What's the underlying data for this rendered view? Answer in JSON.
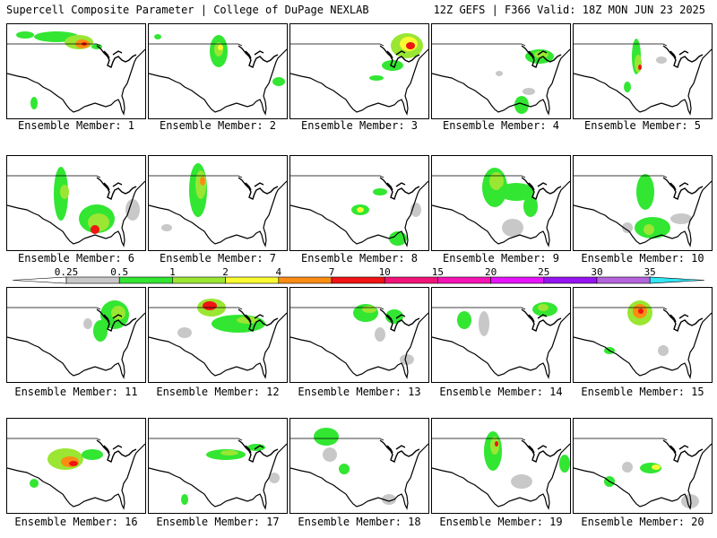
{
  "header": {
    "left": "Supercell Composite Parameter | College of DuPage NEXLAB",
    "right": "12Z GEFS | F366 Valid: 18Z MON JUN 23 2025"
  },
  "members": [
    {
      "label": "Ensemble Member: 1"
    },
    {
      "label": "Ensemble Member: 2"
    },
    {
      "label": "Ensemble Member: 3"
    },
    {
      "label": "Ensemble Member: 4"
    },
    {
      "label": "Ensemble Member: 5"
    },
    {
      "label": "Ensemble Member: 6"
    },
    {
      "label": "Ensemble Member: 7"
    },
    {
      "label": "Ensemble Member: 8"
    },
    {
      "label": "Ensemble Member: 9"
    },
    {
      "label": "Ensemble Member: 10"
    },
    {
      "label": "Ensemble Member: 11"
    },
    {
      "label": "Ensemble Member: 12"
    },
    {
      "label": "Ensemble Member: 13"
    },
    {
      "label": "Ensemble Member: 14"
    },
    {
      "label": "Ensemble Member: 15"
    },
    {
      "label": "Ensemble Member: 16"
    },
    {
      "label": "Ensemble Member: 17"
    },
    {
      "label": "Ensemble Member: 18"
    },
    {
      "label": "Ensemble Member: 19"
    },
    {
      "label": "Ensemble Member: 20"
    }
  ],
  "colorbar": {
    "ticks": [
      "0.25",
      "0.5",
      "1",
      "2",
      "4",
      "7",
      "10",
      "15",
      "20",
      "25",
      "30",
      "35"
    ],
    "colors": [
      "#c8c8c8",
      "#32e632",
      "#9ae632",
      "#fafa32",
      "#fa8c14",
      "#f01414",
      "#f01478",
      "#f514b4",
      "#e614fa",
      "#9614f0",
      "#b464dc",
      "#32e6f5"
    ]
  }
}
